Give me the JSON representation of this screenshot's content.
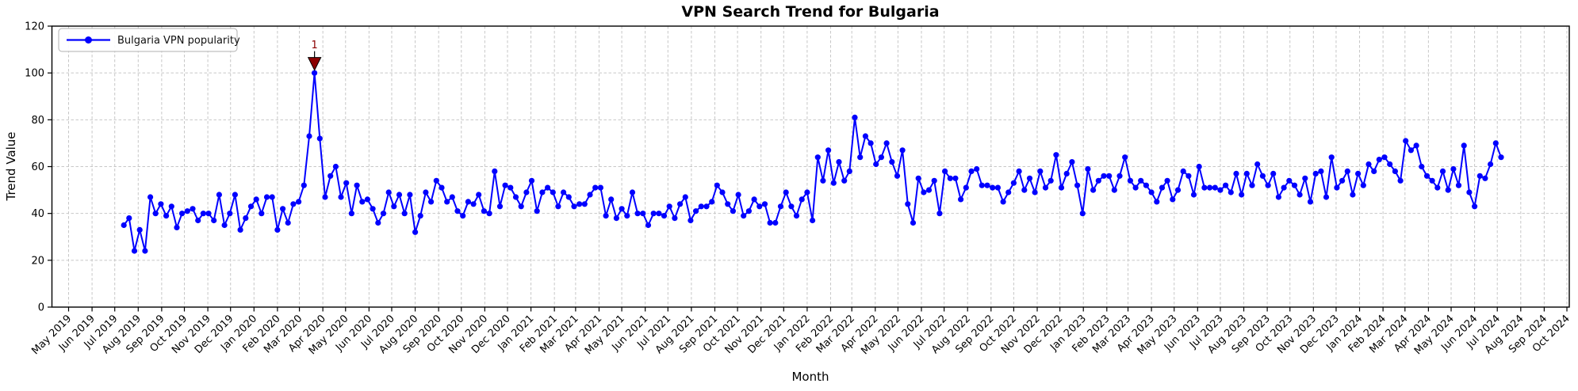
{
  "chart_data": {
    "type": "line",
    "title": "VPN Search Trend for Bulgaria",
    "xlabel": "Month",
    "ylabel": "Trend Value",
    "ylim": [
      0,
      120
    ],
    "yticks": [
      0,
      20,
      40,
      60,
      80,
      100,
      120
    ],
    "grid": true,
    "x_tick_labels": [
      "May 2019",
      "Jun 2019",
      "Jul 2019",
      "Aug 2019",
      "Sep 2019",
      "Oct 2019",
      "Nov 2019",
      "Dec 2019",
      "Jan 2020",
      "Feb 2020",
      "Mar 2020",
      "Apr 2020",
      "May 2020",
      "Jun 2020",
      "Jul 2020",
      "Aug 2020",
      "Sep 2020",
      "Oct 2020",
      "Nov 2020",
      "Dec 2020",
      "Jan 2021",
      "Feb 2021",
      "Mar 2021",
      "Apr 2021",
      "May 2021",
      "Jun 2021",
      "Jul 2021",
      "Aug 2021",
      "Sep 2021",
      "Oct 2021",
      "Nov 2021",
      "Dec 2021",
      "Jan 2022",
      "Feb 2022",
      "Mar 2022",
      "Apr 2022",
      "May 2022",
      "Jun 2022",
      "Jul 2022",
      "Aug 2022",
      "Sep 2022",
      "Oct 2022",
      "Nov 2022",
      "Dec 2022",
      "Jan 2023",
      "Feb 2023",
      "Mar 2023",
      "Apr 2023",
      "May 2023",
      "Jun 2023",
      "Jul 2023",
      "Aug 2023",
      "Sep 2023",
      "Oct 2023",
      "Nov 2023",
      "Dec 2023",
      "Jan 2024",
      "Feb 2024",
      "Mar 2024",
      "Apr 2024",
      "May 2024",
      "Jun 2024",
      "Jul 2024",
      "Aug 2024",
      "Sep 2024",
      "Oct 2024"
    ],
    "legend": {
      "position": "upper left",
      "entries": [
        {
          "label": "Bulgaria VPN popularity",
          "color": "#0000ff",
          "marker": "circle"
        }
      ]
    },
    "series": [
      {
        "name": "Bulgaria VPN popularity",
        "color": "#0000ff",
        "cadence": "weekly",
        "values": [
          35,
          38,
          24,
          33,
          24,
          47,
          40,
          44,
          39,
          43,
          34,
          40,
          41,
          42,
          37,
          40,
          40,
          37,
          48,
          35,
          40,
          48,
          33,
          38,
          43,
          46,
          40,
          47,
          47,
          33,
          42,
          36,
          44,
          45,
          52,
          73,
          100,
          72,
          47,
          56,
          60,
          47,
          53,
          40,
          52,
          45,
          46,
          42,
          36,
          40,
          49,
          43,
          48,
          40,
          48,
          32,
          39,
          49,
          45,
          54,
          51,
          45,
          47,
          41,
          39,
          45,
          44,
          48,
          41,
          40,
          58,
          43,
          52,
          51,
          47,
          43,
          49,
          54,
          41,
          49,
          51,
          49,
          43,
          49,
          47,
          43,
          44,
          44,
          48,
          51,
          51,
          39,
          46,
          38,
          42,
          39,
          49,
          40,
          40,
          35,
          40,
          40,
          39,
          43,
          38,
          44,
          47,
          37,
          41,
          43,
          43,
          45,
          52,
          49,
          44,
          41,
          48,
          39,
          41,
          46,
          43,
          44,
          36,
          36,
          43,
          49,
          43,
          39,
          46,
          49,
          37,
          64,
          54,
          67,
          53,
          62,
          54,
          58,
          81,
          64,
          73,
          70,
          61,
          64,
          70,
          62,
          56,
          67,
          44,
          36,
          55,
          49,
          50,
          54,
          40,
          58,
          55,
          55,
          46,
          51,
          58,
          59,
          52,
          52,
          51,
          51,
          45,
          49,
          53,
          58,
          50,
          55,
          49,
          58,
          51,
          54,
          65,
          51,
          57,
          62,
          52,
          40,
          59,
          50,
          54,
          56,
          56,
          50,
          56,
          64,
          54,
          51,
          54,
          52,
          49,
          45,
          51,
          54,
          46,
          50,
          58,
          56,
          48,
          60,
          51,
          51,
          51,
          50,
          52,
          49,
          57,
          48,
          57,
          52,
          61,
          56,
          52,
          57,
          47,
          51,
          54,
          52,
          48,
          55,
          45,
          57,
          58,
          47,
          64,
          51,
          54,
          58,
          48,
          57,
          52,
          61,
          58,
          63,
          64,
          61,
          58,
          54,
          71,
          67,
          69,
          60,
          56,
          54,
          51,
          58,
          50,
          59,
          52,
          69,
          49,
          43,
          56,
          55,
          61,
          70,
          64
        ]
      }
    ],
    "annotations": [
      {
        "label": "1",
        "week_index": 36,
        "value": 100,
        "color": "#8b0000",
        "marker": "triangle-down"
      }
    ],
    "colors": {
      "line": "#0000ff",
      "annotation": "#8b0000",
      "grid": "#c7c7c7",
      "frame": "#000000",
      "background": "#ffffff"
    }
  }
}
